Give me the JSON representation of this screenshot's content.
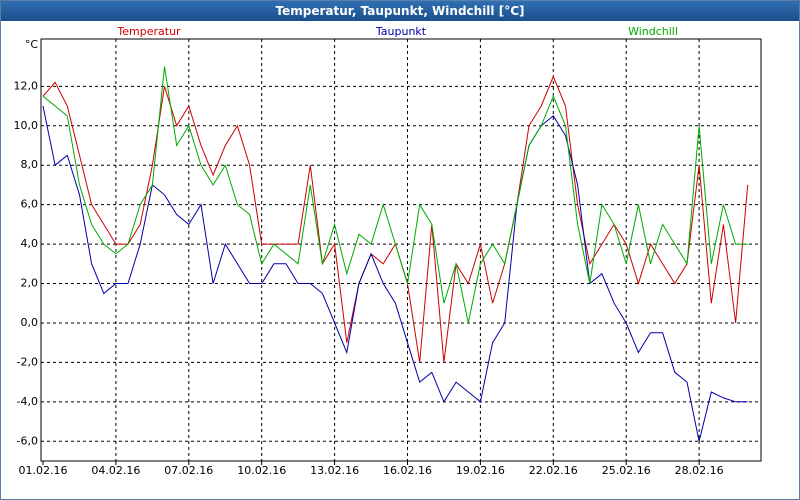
{
  "chart_data": {
    "type": "line",
    "title": "Temperatur, Taupunkt, Windchill [°C]",
    "y_label": "°C",
    "categories": [
      "01.02.16",
      null,
      null,
      null,
      null,
      null,
      "04.02.16",
      null,
      null,
      null,
      null,
      null,
      "07.02.16",
      null,
      null,
      null,
      null,
      null,
      "10.02.16",
      null,
      null,
      null,
      null,
      null,
      "13.02.16",
      null,
      null,
      null,
      null,
      null,
      "16.02.16",
      null,
      null,
      null,
      null,
      null,
      "19.02.16",
      null,
      null,
      null,
      null,
      null,
      "22.02.16",
      null,
      null,
      null,
      null,
      null,
      "25.02.16",
      null,
      null,
      null,
      null,
      null,
      "28.02.16",
      null,
      null,
      null,
      null
    ],
    "series": [
      {
        "name": "Temperatur",
        "color": "#cc0000",
        "values": [
          11.5,
          12.2,
          11,
          8.5,
          6,
          5,
          4,
          4,
          5,
          8,
          12,
          10,
          11,
          9,
          7.5,
          9,
          10,
          8,
          4,
          4,
          4,
          4,
          8,
          3,
          4,
          -1,
          2,
          3.5,
          3,
          4,
          2,
          -2,
          5,
          -2,
          3,
          2,
          4,
          1,
          3,
          6,
          10,
          11,
          12.5,
          11,
          6,
          3,
          4,
          5,
          4,
          2,
          4,
          3,
          2,
          3,
          8,
          1,
          5,
          0,
          7
        ]
      },
      {
        "name": "Taupunkt",
        "color": "#0000aa",
        "values": [
          11,
          8,
          8.5,
          6.5,
          3,
          1.5,
          2,
          2,
          4,
          7,
          6.5,
          5.5,
          5,
          6,
          2,
          4,
          3,
          2,
          2,
          3,
          3,
          2,
          2,
          1.5,
          0,
          -1.5,
          2,
          3.5,
          2,
          1,
          -1,
          -3,
          -2.5,
          -4,
          -3,
          -3.5,
          -4,
          -1,
          0,
          6,
          9,
          10,
          10.5,
          9.5,
          7,
          2,
          2.5,
          1,
          0,
          -1.5,
          -0.5,
          -0.5,
          -2.5,
          -3,
          -6,
          -3.5,
          -3.8,
          -4,
          -4
        ]
      },
      {
        "name": "Windchill",
        "color": "#00aa00",
        "values": [
          11.5,
          11,
          10.5,
          7,
          5,
          4,
          3.5,
          4,
          6,
          7,
          13,
          9,
          10,
          8,
          7,
          8,
          6,
          5.5,
          3,
          4,
          3.5,
          3,
          7,
          3,
          5,
          2.5,
          4.5,
          4,
          6,
          4,
          2,
          6,
          5,
          1,
          3,
          0,
          3,
          4,
          3,
          6,
          9,
          10,
          11.5,
          10,
          5,
          2,
          6,
          5,
          3,
          6,
          3,
          5,
          4,
          3,
          10,
          3,
          6,
          4,
          4
        ]
      }
    ],
    "ylim": [
      -7,
      14.4
    ],
    "yticks": [
      {
        "value": -6,
        "label": "-6,0"
      },
      {
        "value": -4,
        "label": "-4,0"
      },
      {
        "value": -2,
        "label": "-2,0"
      },
      {
        "value": 0,
        "label": "0,0"
      },
      {
        "value": 2,
        "label": "2,0"
      },
      {
        "value": 4,
        "label": "4,0"
      },
      {
        "value": 6,
        "label": "6,0"
      },
      {
        "value": 8,
        "label": "8,0"
      },
      {
        "value": 10,
        "label": "10,0"
      },
      {
        "value": 12,
        "label": "12,0"
      }
    ],
    "grid": true
  }
}
